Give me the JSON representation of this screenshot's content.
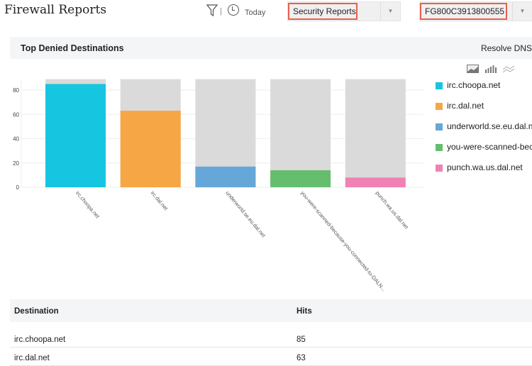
{
  "header": {
    "title": "Firewall Reports",
    "time_range": "Today",
    "separator": "|",
    "report_select": "Security Reports",
    "device_select": "FG800C3913800555"
  },
  "panel": {
    "title": "Top Denied Destinations",
    "resolve_dns": "Resolve DNS",
    "chart_type_icons": [
      "area-chart-icon",
      "bar-chart-icon",
      "line-chart-icon"
    ]
  },
  "chart_data": {
    "type": "bar",
    "title": "",
    "xlabel": "",
    "ylabel": "",
    "ylim": [
      0,
      89
    ],
    "yticks": [
      "0",
      "20",
      "40",
      "60",
      "80"
    ],
    "categories": [
      "irc.choopa.net",
      "irc.dal.net",
      "underworld.se.eu.dal.net",
      "you-were-scanned-because-you-connected-to-DALN...",
      "punch.wa.us.dal.net"
    ],
    "values": [
      85,
      63,
      17,
      14,
      8
    ],
    "colors": [
      "#16c5e0",
      "#f6a645",
      "#64a7d8",
      "#65bd6e",
      "#ef82b3"
    ],
    "background_bar_color": "#dadada",
    "grid": true,
    "legend_position": "right",
    "legend": [
      "irc.choopa.net",
      "irc.dal.net",
      "underworld.se.eu.dal.net",
      "you-were-scanned-bec...",
      "punch.wa.us.dal.net"
    ]
  },
  "table": {
    "headers": [
      "Destination",
      "Hits"
    ],
    "rows": [
      [
        "irc.choopa.net",
        "85"
      ],
      [
        "irc.dal.net",
        "63"
      ]
    ]
  }
}
